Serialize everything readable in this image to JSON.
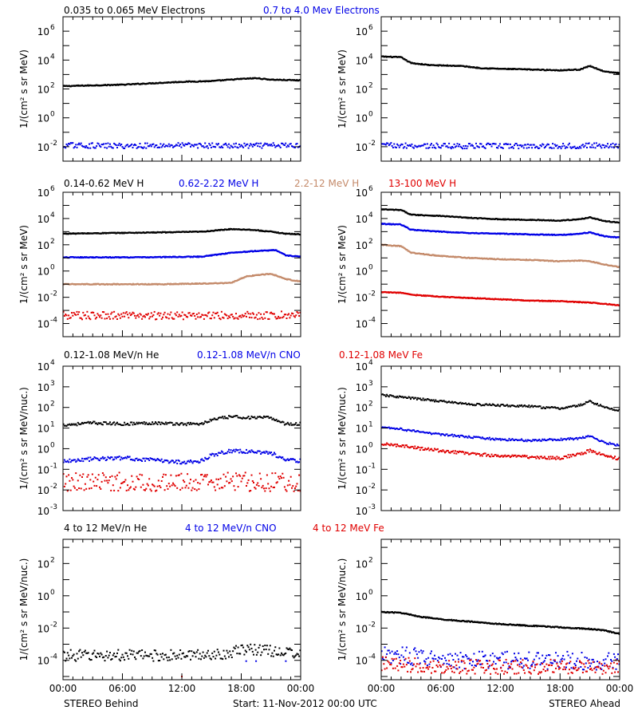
{
  "footer": {
    "left": "STEREO Behind",
    "center": "Start: 11-Nov-2012 00:00 UTC",
    "right": "STEREO Ahead"
  },
  "colors": {
    "black": "#000000",
    "blue": "#0000e6",
    "tan": "#c48a6a",
    "red": "#e00000"
  },
  "chart_data": [
    {
      "type": "scatter",
      "panel": "row1-left (STEREO Behind)",
      "legend": [
        {
          "text": "0.035 to 0.065 MeV Electrons",
          "color": "#000000"
        },
        {
          "text": "0.7 to 4.0 Mev Electrons",
          "color": "#0000e6"
        }
      ],
      "ylabel": "1/(cm² s sr MeV)",
      "yscale": "log",
      "ylim_exp": [
        -3,
        7
      ],
      "yticks": [
        {
          "label": "10",
          "exp": "-2"
        },
        {
          "label": "10",
          "exp": "0"
        },
        {
          "label": "10",
          "exp": "2"
        },
        {
          "label": "10",
          "exp": "4"
        },
        {
          "label": "10",
          "exp": "6"
        }
      ],
      "xticks": [
        "00:00",
        "06:00",
        "12:00",
        "18:00",
        "00:00"
      ],
      "xlim_hours": [
        0,
        24
      ],
      "series": [
        {
          "name": "0.035 to 0.065 MeV Electrons",
          "color": "#000000",
          "style": "dense",
          "x": [
            0,
            3,
            6,
            9,
            12,
            15,
            18,
            19.5,
            21,
            24
          ],
          "y": [
            2.2,
            2.25,
            2.3,
            2.4,
            2.5,
            2.55,
            2.7,
            2.75,
            2.65,
            2.6
          ]
        },
        {
          "name": "0.7 to 4.0 Mev Electrons",
          "color": "#0000e6",
          "style": "scatter",
          "spread": 0.18,
          "x": [
            0,
            6,
            12,
            18,
            24
          ],
          "y": [
            -1.9,
            -1.95,
            -1.9,
            -1.95,
            -1.9
          ]
        }
      ]
    },
    {
      "type": "scatter",
      "panel": "row1-right (STEREO Ahead)",
      "ylabel": "1/(cm² s sr MeV)",
      "yscale": "log",
      "ylim_exp": [
        -3,
        7
      ],
      "yticks": [
        {
          "label": "10",
          "exp": "-2"
        },
        {
          "label": "10",
          "exp": "0"
        },
        {
          "label": "10",
          "exp": "2"
        },
        {
          "label": "10",
          "exp": "4"
        },
        {
          "label": "10",
          "exp": "6"
        }
      ],
      "xticks": [
        "00:00",
        "06:00",
        "12:00",
        "18:00",
        "00:00"
      ],
      "xlim_hours": [
        0,
        24
      ],
      "series": [
        {
          "color": "#000000",
          "style": "dense",
          "x": [
            0,
            2,
            3,
            5,
            8,
            10,
            12,
            15,
            18,
            20,
            21,
            22.5,
            24
          ],
          "y": [
            4.25,
            4.2,
            3.8,
            3.65,
            3.6,
            3.45,
            3.4,
            3.35,
            3.3,
            3.35,
            3.6,
            3.2,
            3.1
          ]
        },
        {
          "color": "#0000e6",
          "style": "scatter",
          "spread": 0.18,
          "x": [
            0,
            6,
            12,
            18,
            24
          ],
          "y": [
            -1.9,
            -1.95,
            -1.95,
            -1.95,
            -1.9
          ]
        }
      ]
    },
    {
      "type": "scatter",
      "panel": "row2-left (STEREO Behind)",
      "legend": [
        {
          "text": "0.14-0.62 MeV H",
          "color": "#000000"
        },
        {
          "text": "0.62-2.22 MeV H",
          "color": "#0000e6"
        },
        {
          "text": "2.2-12 MeV H",
          "color": "#c48a6a"
        },
        {
          "text": "13-100 MeV H",
          "color": "#e00000"
        }
      ],
      "ylabel": "1/(cm² s sr MeV)",
      "yscale": "log",
      "ylim_exp": [
        -5,
        6
      ],
      "yticks": [
        {
          "label": "10",
          "exp": "-4"
        },
        {
          "label": "10",
          "exp": "-2"
        },
        {
          "label": "10",
          "exp": "0"
        },
        {
          "label": "10",
          "exp": "2"
        },
        {
          "label": "10",
          "exp": "4"
        },
        {
          "label": "10",
          "exp": "6"
        }
      ],
      "xticks": [
        "00:00",
        "06:00",
        "12:00",
        "18:00",
        "00:00"
      ],
      "xlim_hours": [
        0,
        24
      ],
      "series": [
        {
          "name": "0.14-0.62 MeV H",
          "color": "#000000",
          "style": "dense",
          "x": [
            0,
            5,
            10,
            14,
            17,
            19,
            21,
            22.5,
            24
          ],
          "y": [
            2.85,
            2.9,
            2.95,
            3.0,
            3.2,
            3.15,
            3.0,
            2.85,
            2.8
          ]
        },
        {
          "name": "0.62-2.22 MeV H",
          "color": "#0000e6",
          "style": "dense",
          "x": [
            0,
            8,
            14,
            17,
            20,
            21.5,
            22.5,
            24
          ],
          "y": [
            1.05,
            1.05,
            1.1,
            1.4,
            1.55,
            1.6,
            1.2,
            1.1
          ]
        },
        {
          "name": "2.2-12 MeV H",
          "color": "#c48a6a",
          "style": "dense",
          "x": [
            0,
            4,
            10,
            14,
            17,
            18.5,
            21,
            22.5,
            24
          ],
          "y": [
            -1.0,
            -1.0,
            -1.0,
            -0.95,
            -0.9,
            -0.4,
            -0.2,
            -0.6,
            -0.8
          ]
        },
        {
          "name": "13-100 MeV H",
          "color": "#e00000",
          "style": "scatter",
          "spread": 0.3,
          "x": [
            0,
            6,
            12,
            18,
            24
          ],
          "y": [
            -3.4,
            -3.4,
            -3.4,
            -3.4,
            -3.35
          ]
        }
      ]
    },
    {
      "type": "scatter",
      "panel": "row2-right (STEREO Ahead)",
      "ylabel": "1/(cm² s sr MeV)",
      "yscale": "log",
      "ylim_exp": [
        -5,
        6
      ],
      "yticks": [
        {
          "label": "10",
          "exp": "-4"
        },
        {
          "label": "10",
          "exp": "-2"
        },
        {
          "label": "10",
          "exp": "0"
        },
        {
          "label": "10",
          "exp": "2"
        },
        {
          "label": "10",
          "exp": "4"
        },
        {
          "label": "10",
          "exp": "6"
        }
      ],
      "xticks": [
        "00:00",
        "06:00",
        "12:00",
        "18:00",
        "00:00"
      ],
      "xlim_hours": [
        0,
        24
      ],
      "series": [
        {
          "color": "#000000",
          "style": "dense",
          "x": [
            0,
            2,
            3,
            6,
            9,
            12,
            15,
            18,
            20,
            21,
            22.5,
            24
          ],
          "y": [
            4.7,
            4.65,
            4.3,
            4.2,
            4.05,
            3.95,
            3.9,
            3.85,
            3.95,
            4.1,
            3.8,
            3.7
          ]
        },
        {
          "color": "#0000e6",
          "style": "dense",
          "x": [
            0,
            2,
            3,
            6,
            9,
            12,
            15,
            18,
            20,
            21,
            22.5,
            24
          ],
          "y": [
            3.6,
            3.55,
            3.15,
            3.0,
            2.9,
            2.85,
            2.8,
            2.75,
            2.85,
            2.95,
            2.65,
            2.55
          ]
        },
        {
          "color": "#c48a6a",
          "style": "dense",
          "x": [
            0,
            2,
            3,
            6,
            9,
            12,
            15,
            18,
            20,
            21,
            22.5,
            24
          ],
          "y": [
            2.0,
            1.9,
            1.4,
            1.15,
            1.0,
            0.9,
            0.85,
            0.75,
            0.8,
            0.75,
            0.5,
            0.3
          ]
        },
        {
          "color": "#e00000",
          "style": "dense",
          "x": [
            0,
            2,
            3,
            6,
            9,
            12,
            15,
            18,
            21,
            24
          ],
          "y": [
            -1.6,
            -1.65,
            -1.8,
            -1.95,
            -2.05,
            -2.15,
            -2.25,
            -2.3,
            -2.4,
            -2.6
          ]
        }
      ]
    },
    {
      "type": "scatter",
      "panel": "row3-left (STEREO Behind)",
      "legend": [
        {
          "text": "0.12-1.08 MeV/n He",
          "color": "#000000"
        },
        {
          "text": "0.12-1.08 MeV/n CNO",
          "color": "#0000e6"
        },
        {
          "text": "0.12-1.08 MeV Fe",
          "color": "#e00000"
        }
      ],
      "ylabel": "1/(cm² s sr MeV/nuc.)",
      "yscale": "log",
      "ylim_exp": [
        -3,
        4
      ],
      "yticks": [
        {
          "label": "10",
          "exp": "-3"
        },
        {
          "label": "10",
          "exp": "-2"
        },
        {
          "label": "10",
          "exp": "-1"
        },
        {
          "label": "10",
          "exp": "0"
        },
        {
          "label": "10",
          "exp": "1"
        },
        {
          "label": "10",
          "exp": "2"
        },
        {
          "label": "10",
          "exp": "3"
        },
        {
          "label": "10",
          "exp": "4"
        }
      ],
      "xticks": [
        "00:00",
        "06:00",
        "12:00",
        "18:00",
        "00:00"
      ],
      "xlim_hours": [
        0,
        24
      ],
      "series": [
        {
          "name": "0.12-1.08 MeV/n He",
          "color": "#000000",
          "style": "scatter",
          "spread": 0.07,
          "x": [
            0,
            3,
            6,
            9,
            12,
            14,
            15,
            17,
            19,
            21,
            22.5,
            24
          ],
          "y": [
            1.15,
            1.25,
            1.2,
            1.25,
            1.2,
            1.2,
            1.4,
            1.55,
            1.5,
            1.5,
            1.2,
            1.2
          ]
        },
        {
          "name": "0.12-1.08 MeV/n CNO",
          "color": "#0000e6",
          "style": "scatter",
          "spread": 0.09,
          "x": [
            0,
            3,
            6,
            9,
            12,
            14,
            15,
            17,
            19,
            21,
            22.5,
            24
          ],
          "y": [
            -0.6,
            -0.5,
            -0.45,
            -0.55,
            -0.65,
            -0.6,
            -0.3,
            -0.1,
            -0.15,
            -0.2,
            -0.55,
            -0.6
          ]
        },
        {
          "name": "0.12-1.08 MeV Fe",
          "color": "#e00000",
          "style": "scatter",
          "spread": 0.45,
          "x": [
            0,
            6,
            12,
            18,
            24
          ],
          "y": [
            -1.6,
            -1.6,
            -1.65,
            -1.6,
            -1.65
          ]
        }
      ]
    },
    {
      "type": "scatter",
      "panel": "row3-right (STEREO Ahead)",
      "ylabel": "1/(cm² s sr MeV/nuc.)",
      "yscale": "log",
      "ylim_exp": [
        -3,
        4
      ],
      "yticks": [
        {
          "label": "10",
          "exp": "-3"
        },
        {
          "label": "10",
          "exp": "-2"
        },
        {
          "label": "10",
          "exp": "-1"
        },
        {
          "label": "10",
          "exp": "0"
        },
        {
          "label": "10",
          "exp": "1"
        },
        {
          "label": "10",
          "exp": "2"
        },
        {
          "label": "10",
          "exp": "3"
        },
        {
          "label": "10",
          "exp": "4"
        }
      ],
      "xticks": [
        "00:00",
        "06:00",
        "12:00",
        "18:00",
        "00:00"
      ],
      "xlim_hours": [
        0,
        24
      ],
      "series": [
        {
          "color": "#000000",
          "style": "scatter",
          "spread": 0.05,
          "x": [
            0,
            2,
            4,
            6,
            9,
            12,
            15,
            18,
            20,
            21,
            22.5,
            24
          ],
          "y": [
            2.6,
            2.5,
            2.4,
            2.3,
            2.15,
            2.1,
            2.05,
            1.95,
            2.1,
            2.3,
            2.0,
            1.85
          ]
        },
        {
          "color": "#0000e6",
          "style": "scatter",
          "spread": 0.05,
          "x": [
            0,
            2,
            4,
            6,
            9,
            12,
            15,
            18,
            20,
            21,
            22.5,
            24
          ],
          "y": [
            1.05,
            0.95,
            0.8,
            0.7,
            0.55,
            0.45,
            0.4,
            0.45,
            0.5,
            0.6,
            0.3,
            0.15
          ]
        },
        {
          "color": "#e00000",
          "style": "scatter",
          "spread": 0.07,
          "x": [
            0,
            2,
            4,
            6,
            9,
            12,
            15,
            18,
            20,
            21,
            22.5,
            24
          ],
          "y": [
            0.25,
            0.15,
            0.0,
            -0.1,
            -0.25,
            -0.35,
            -0.4,
            -0.45,
            -0.25,
            -0.1,
            -0.3,
            -0.5
          ]
        }
      ]
    },
    {
      "type": "scatter",
      "panel": "row4-left (STEREO Behind)",
      "legend": [
        {
          "text": "4 to 12 MeV/n He",
          "color": "#000000"
        },
        {
          "text": "4 to 12 MeV/n CNO",
          "color": "#0000e6"
        },
        {
          "text": "4 to 12 MeV Fe",
          "color": "#e00000"
        }
      ],
      "ylabel": "1/(cm² s sr MeV/nuc.)",
      "yscale": "log",
      "ylim_exp": [
        -5.2,
        3.5
      ],
      "yticks": [
        {
          "label": "10",
          "exp": "-4"
        },
        {
          "label": "10",
          "exp": "-2"
        },
        {
          "label": "10",
          "exp": "0"
        },
        {
          "label": "10",
          "exp": "2"
        }
      ],
      "xticks": [
        "00:00",
        "06:00",
        "12:00",
        "18:00",
        "00:00"
      ],
      "xlim_hours": [
        0,
        24
      ],
      "series": [
        {
          "name": "4 to 12 MeV/n He",
          "color": "#000000",
          "style": "scatter",
          "spread": 0.35,
          "x": [
            0,
            6,
            12,
            16,
            19,
            21,
            24
          ],
          "y": [
            -3.7,
            -3.7,
            -3.7,
            -3.6,
            -3.3,
            -3.4,
            -3.6
          ]
        },
        {
          "name": "4 to 12 MeV/n CNO",
          "color": "#0000e6",
          "style": "sparse",
          "x": [
            18.5,
            19.5,
            22.5
          ],
          "y": [
            -4.05,
            -4.05,
            -4.05
          ]
        },
        {
          "name": "4 to 12 MeV Fe",
          "color": "#e00000",
          "style": "sparse",
          "x": [
            12.0
          ],
          "y": [
            -5.0
          ]
        }
      ]
    },
    {
      "type": "scatter",
      "panel": "row4-right (STEREO Ahead)",
      "ylabel": "1/(cm² s sr MeV/nuc.)",
      "yscale": "log",
      "ylim_exp": [
        -5.2,
        3.5
      ],
      "yticks": [
        {
          "label": "10",
          "exp": "-4"
        },
        {
          "label": "10",
          "exp": "-2"
        },
        {
          "label": "10",
          "exp": "0"
        },
        {
          "label": "10",
          "exp": "2"
        }
      ],
      "xticks": [
        "00:00",
        "06:00",
        "12:00",
        "18:00",
        "00:00"
      ],
      "xlim_hours": [
        0,
        24
      ],
      "series": [
        {
          "color": "#000000",
          "style": "dense",
          "x": [
            0,
            2,
            4,
            6,
            9,
            12,
            15,
            18,
            21,
            22.5,
            24
          ],
          "y": [
            -1.0,
            -1.05,
            -1.3,
            -1.45,
            -1.6,
            -1.75,
            -1.85,
            -1.95,
            -2.05,
            -2.15,
            -2.35
          ]
        },
        {
          "color": "#0000e6",
          "style": "scatter",
          "spread": 0.55,
          "x": [
            0,
            4,
            8,
            12,
            18,
            24
          ],
          "y": [
            -3.6,
            -3.8,
            -4.0,
            -4.0,
            -4.0,
            -4.1
          ]
        },
        {
          "color": "#e00000",
          "style": "scatter",
          "spread": 0.45,
          "x": [
            0,
            3,
            6
          ],
          "y": [
            -4.2,
            -4.3,
            -4.4
          ]
        }
      ]
    }
  ]
}
